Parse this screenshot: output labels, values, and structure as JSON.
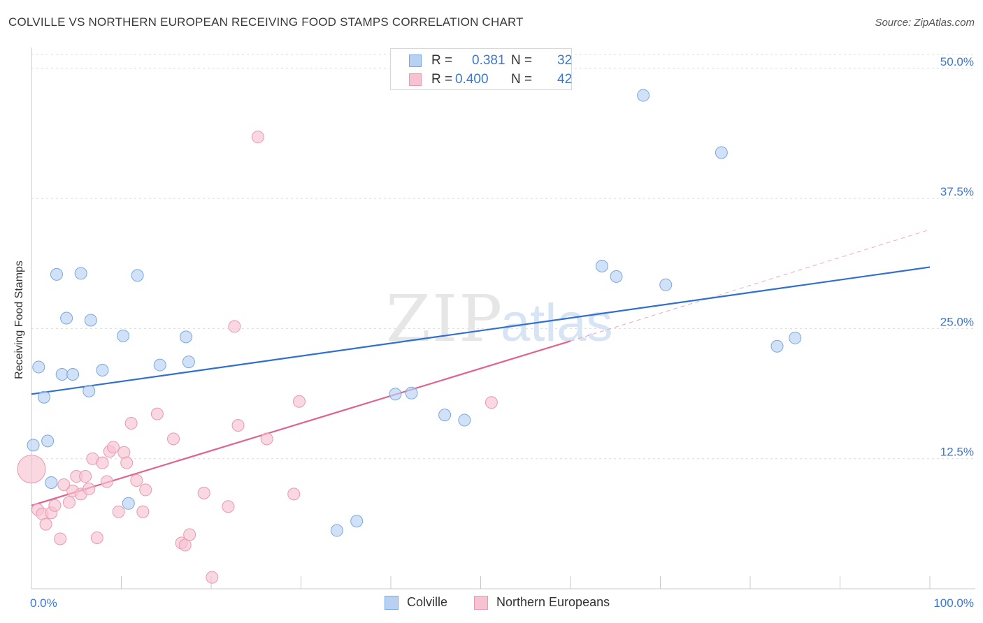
{
  "title": "COLVILLE VS NORTHERN EUROPEAN RECEIVING FOOD STAMPS CORRELATION CHART",
  "source": "Source: ZipAtlas.com",
  "watermark": {
    "zip": "ZIP",
    "atlas": "atlas"
  },
  "legend": {
    "colville": {
      "r_label": "R = ",
      "r_value": "0.381",
      "n_label": "N = ",
      "n_value": "32"
    },
    "northern": {
      "r_label": "R = ",
      "r_value": "0.400",
      "n_label": "N = ",
      "n_value": "42"
    }
  },
  "bottom_legend": {
    "colville": "Colville",
    "northern": "Northern Europeans"
  },
  "chart_data": {
    "type": "scatter",
    "ylabel": "Receiving Food Stamps",
    "xlim": [
      0,
      100
    ],
    "ylim": [
      0,
      52
    ],
    "y_ticks": [
      {
        "value": 12.5,
        "label": "12.5%"
      },
      {
        "value": 25.0,
        "label": "25.0%"
      },
      {
        "value": 37.5,
        "label": "37.5%"
      },
      {
        "value": 50.0,
        "label": "50.0%"
      }
    ],
    "x_tick_labels": [
      {
        "value": 0,
        "label": "0.0%"
      },
      {
        "value": 100,
        "label": "100.0%"
      }
    ],
    "grid": true,
    "colors": {
      "colville_fill": "#b8d1f2",
      "colville_stroke": "#7aa8e0",
      "colville_line": "#2f6fcf",
      "northern_fill": "#f7c3d3",
      "northern_stroke": "#e999b2",
      "northern_line": "#e0628f",
      "axis_text": "#3a78d4"
    },
    "series": [
      {
        "name": "Colville",
        "points": [
          {
            "x": 0.2,
            "y": 13.8
          },
          {
            "x": 0.8,
            "y": 21.3
          },
          {
            "x": 1.4,
            "y": 18.4
          },
          {
            "x": 1.8,
            "y": 14.2
          },
          {
            "x": 2.2,
            "y": 10.2
          },
          {
            "x": 2.8,
            "y": 30.2
          },
          {
            "x": 3.4,
            "y": 20.6
          },
          {
            "x": 3.9,
            "y": 26.0
          },
          {
            "x": 4.6,
            "y": 20.6
          },
          {
            "x": 5.5,
            "y": 30.3
          },
          {
            "x": 6.4,
            "y": 19.0
          },
          {
            "x": 6.6,
            "y": 25.8
          },
          {
            "x": 7.9,
            "y": 21.0
          },
          {
            "x": 10.2,
            "y": 24.3
          },
          {
            "x": 10.8,
            "y": 8.2
          },
          {
            "x": 11.8,
            "y": 30.1
          },
          {
            "x": 14.3,
            "y": 21.5
          },
          {
            "x": 17.2,
            "y": 24.2
          },
          {
            "x": 17.5,
            "y": 21.8
          },
          {
            "x": 34.0,
            "y": 5.6
          },
          {
            "x": 36.2,
            "y": 6.5
          },
          {
            "x": 40.5,
            "y": 18.7
          },
          {
            "x": 42.3,
            "y": 18.8
          },
          {
            "x": 46.0,
            "y": 16.7
          },
          {
            "x": 48.2,
            "y": 16.2
          },
          {
            "x": 63.5,
            "y": 31.0
          },
          {
            "x": 65.1,
            "y": 30.0
          },
          {
            "x": 68.1,
            "y": 47.4
          },
          {
            "x": 70.6,
            "y": 29.2
          },
          {
            "x": 76.8,
            "y": 41.9
          },
          {
            "x": 83.0,
            "y": 23.3
          },
          {
            "x": 85.0,
            "y": 24.1
          }
        ],
        "trend": {
          "x": [
            0,
            100
          ],
          "y": [
            18.7,
            30.9
          ]
        }
      },
      {
        "name": "Northern Europeans",
        "points": [
          {
            "x": 0.0,
            "y": 11.5,
            "large": true
          },
          {
            "x": 0.7,
            "y": 7.6
          },
          {
            "x": 1.2,
            "y": 7.2
          },
          {
            "x": 1.6,
            "y": 6.2
          },
          {
            "x": 2.2,
            "y": 7.3
          },
          {
            "x": 2.6,
            "y": 8.0
          },
          {
            "x": 3.2,
            "y": 4.8
          },
          {
            "x": 3.6,
            "y": 10.0
          },
          {
            "x": 4.2,
            "y": 8.3
          },
          {
            "x": 4.6,
            "y": 9.4
          },
          {
            "x": 5.0,
            "y": 10.8
          },
          {
            "x": 5.5,
            "y": 9.1
          },
          {
            "x": 6.0,
            "y": 10.8
          },
          {
            "x": 6.4,
            "y": 9.6
          },
          {
            "x": 6.8,
            "y": 12.5
          },
          {
            "x": 7.3,
            "y": 4.9
          },
          {
            "x": 7.9,
            "y": 12.1
          },
          {
            "x": 8.4,
            "y": 10.3
          },
          {
            "x": 8.7,
            "y": 13.2
          },
          {
            "x": 9.1,
            "y": 13.6
          },
          {
            "x": 9.7,
            "y": 7.4
          },
          {
            "x": 10.3,
            "y": 13.1
          },
          {
            "x": 10.6,
            "y": 12.1
          },
          {
            "x": 11.1,
            "y": 15.9
          },
          {
            "x": 11.7,
            "y": 10.4
          },
          {
            "x": 12.4,
            "y": 7.4
          },
          {
            "x": 12.7,
            "y": 9.5
          },
          {
            "x": 14.0,
            "y": 16.8
          },
          {
            "x": 15.8,
            "y": 14.4
          },
          {
            "x": 16.7,
            "y": 4.4
          },
          {
            "x": 17.1,
            "y": 4.2
          },
          {
            "x": 17.6,
            "y": 5.2
          },
          {
            "x": 19.2,
            "y": 9.2
          },
          {
            "x": 20.1,
            "y": 1.1
          },
          {
            "x": 21.9,
            "y": 7.9
          },
          {
            "x": 22.6,
            "y": 25.2
          },
          {
            "x": 23.0,
            "y": 15.7
          },
          {
            "x": 25.2,
            "y": 43.4
          },
          {
            "x": 26.2,
            "y": 14.4
          },
          {
            "x": 29.2,
            "y": 9.1
          },
          {
            "x": 29.8,
            "y": 18.0
          },
          {
            "x": 51.2,
            "y": 17.9
          }
        ],
        "trend": {
          "x": [
            0,
            60
          ],
          "y": [
            8.0,
            23.8
          ]
        },
        "trend_extension": {
          "x": [
            60,
            100
          ],
          "y": [
            23.8,
            34.5
          ]
        }
      }
    ]
  }
}
